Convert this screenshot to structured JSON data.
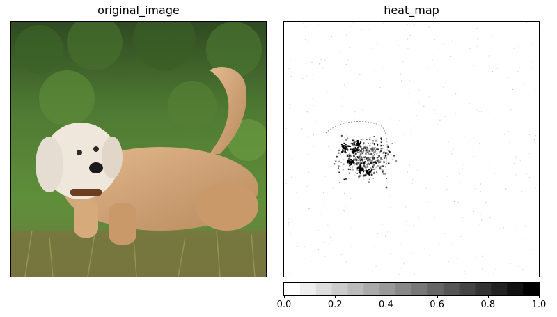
{
  "chart_data": [
    {
      "type": "image",
      "title": "original_image",
      "content": "dog-photo"
    },
    {
      "type": "heatmap",
      "title": "heat_map",
      "colormap": "gray_r",
      "colorbar": {
        "range": [
          0.0,
          1.0
        ],
        "steps": 16,
        "ticks": [
          "0.0",
          "0.2",
          "0.4",
          "0.6",
          "0.8",
          "1.0"
        ],
        "tick_values": [
          0.0,
          0.2,
          0.4,
          0.6,
          0.8,
          1.0
        ]
      }
    }
  ]
}
